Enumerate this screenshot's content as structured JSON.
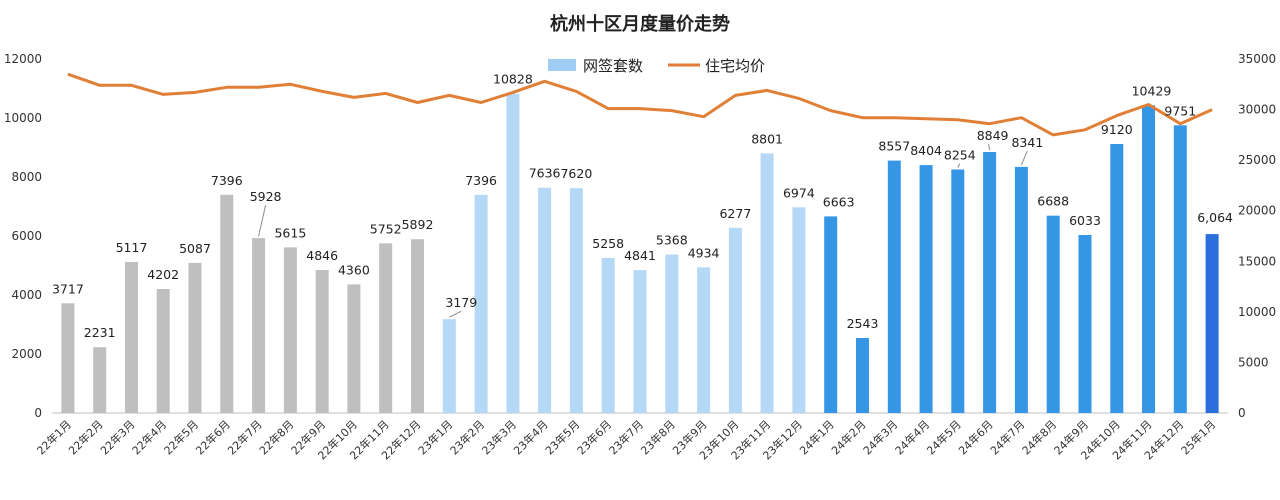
{
  "chart_data": {
    "type": "bar+line",
    "title": "杭州十区月度量价走势",
    "categories": [
      "22年1月",
      "22年2月",
      "22年3月",
      "22年4月",
      "22年5月",
      "22年6月",
      "22年7月",
      "22年8月",
      "22年9月",
      "22年10月",
      "22年11月",
      "22年12月",
      "23年1月",
      "23年2月",
      "23年3月",
      "23年4月",
      "23年5月",
      "23年6月",
      "23年7月",
      "23年8月",
      "23年9月",
      "23年10月",
      "23年11月",
      "23年12月",
      "24年1月",
      "24年2月",
      "24年3月",
      "24年4月",
      "24年5月",
      "24年6月",
      "24年7月",
      "24年8月",
      "24年9月",
      "24年10月",
      "24年11月",
      "24年12月",
      "25年1月"
    ],
    "series": [
      {
        "name": "网签套数",
        "type": "bar",
        "axis": "left",
        "values": [
          3717,
          2231,
          5117,
          4202,
          5087,
          7396,
          5928,
          5615,
          4846,
          4360,
          5752,
          5892,
          3179,
          7396,
          10828,
          7636,
          7620,
          5258,
          4841,
          5368,
          4934,
          6277,
          8801,
          6974,
          6663,
          2543,
          8557,
          8404,
          8254,
          8849,
          8341,
          6688,
          6033,
          9120,
          10429,
          9751,
          6064
        ],
        "labels": [
          "3717",
          "2231",
          "5117",
          "4202",
          "5087",
          "7396",
          "5928",
          "5615",
          "4846",
          "4360",
          "5752",
          "5892",
          "3179",
          "7396",
          "10828",
          "7636",
          "7620",
          "5258",
          "4841",
          "5368",
          "4934",
          "6277",
          "8801",
          "6974",
          "6663",
          "2543",
          "8557",
          "8404",
          "8254",
          "8849",
          "8341",
          "6688",
          "6033",
          "9120",
          "10429",
          "9751",
          "6,064"
        ]
      },
      {
        "name": "住宅均价",
        "type": "line",
        "axis": "right",
        "values": [
          33500,
          32400,
          32400,
          31500,
          31700,
          32200,
          32200,
          32500,
          31800,
          31200,
          31600,
          30700,
          31400,
          30700,
          31700,
          32800,
          31800,
          30100,
          30100,
          29900,
          29300,
          31400,
          31900,
          31100,
          29900,
          29200,
          29200,
          29100,
          29000,
          28600,
          29200,
          27500,
          28000,
          29400,
          30500,
          28600,
          30000
        ]
      }
    ],
    "bar_colors": [
      "#bfbfbf",
      "#bfbfbf",
      "#bfbfbf",
      "#bfbfbf",
      "#bfbfbf",
      "#bfbfbf",
      "#bfbfbf",
      "#bfbfbf",
      "#bfbfbf",
      "#bfbfbf",
      "#bfbfbf",
      "#bfbfbf",
      "#b4d8f5",
      "#b4d8f5",
      "#b4d8f5",
      "#b4d8f5",
      "#b4d8f5",
      "#b4d8f5",
      "#b4d8f5",
      "#b4d8f5",
      "#b4d8f5",
      "#b4d8f5",
      "#b4d8f5",
      "#b4d8f5",
      "#3696e6",
      "#3696e6",
      "#3696e6",
      "#3696e6",
      "#3696e6",
      "#3696e6",
      "#3696e6",
      "#3696e6",
      "#3696e6",
      "#3696e6",
      "#3696e6",
      "#3696e6",
      "#2a6fdc"
    ],
    "line_color": "#e07f35",
    "legend_bar_color": "#9fcdf3",
    "left_axis": {
      "ylim": [
        0,
        12000
      ],
      "ticks": [
        "0",
        "2000",
        "4000",
        "6000",
        "8000",
        "10000",
        "12000"
      ]
    },
    "right_axis": {
      "ylim": [
        0,
        35000
      ],
      "ticks": [
        "0",
        "5000",
        "10000",
        "15000",
        "20000",
        "25000",
        "30000",
        "35000"
      ]
    },
    "legend_position": "top-center",
    "grid": false
  }
}
